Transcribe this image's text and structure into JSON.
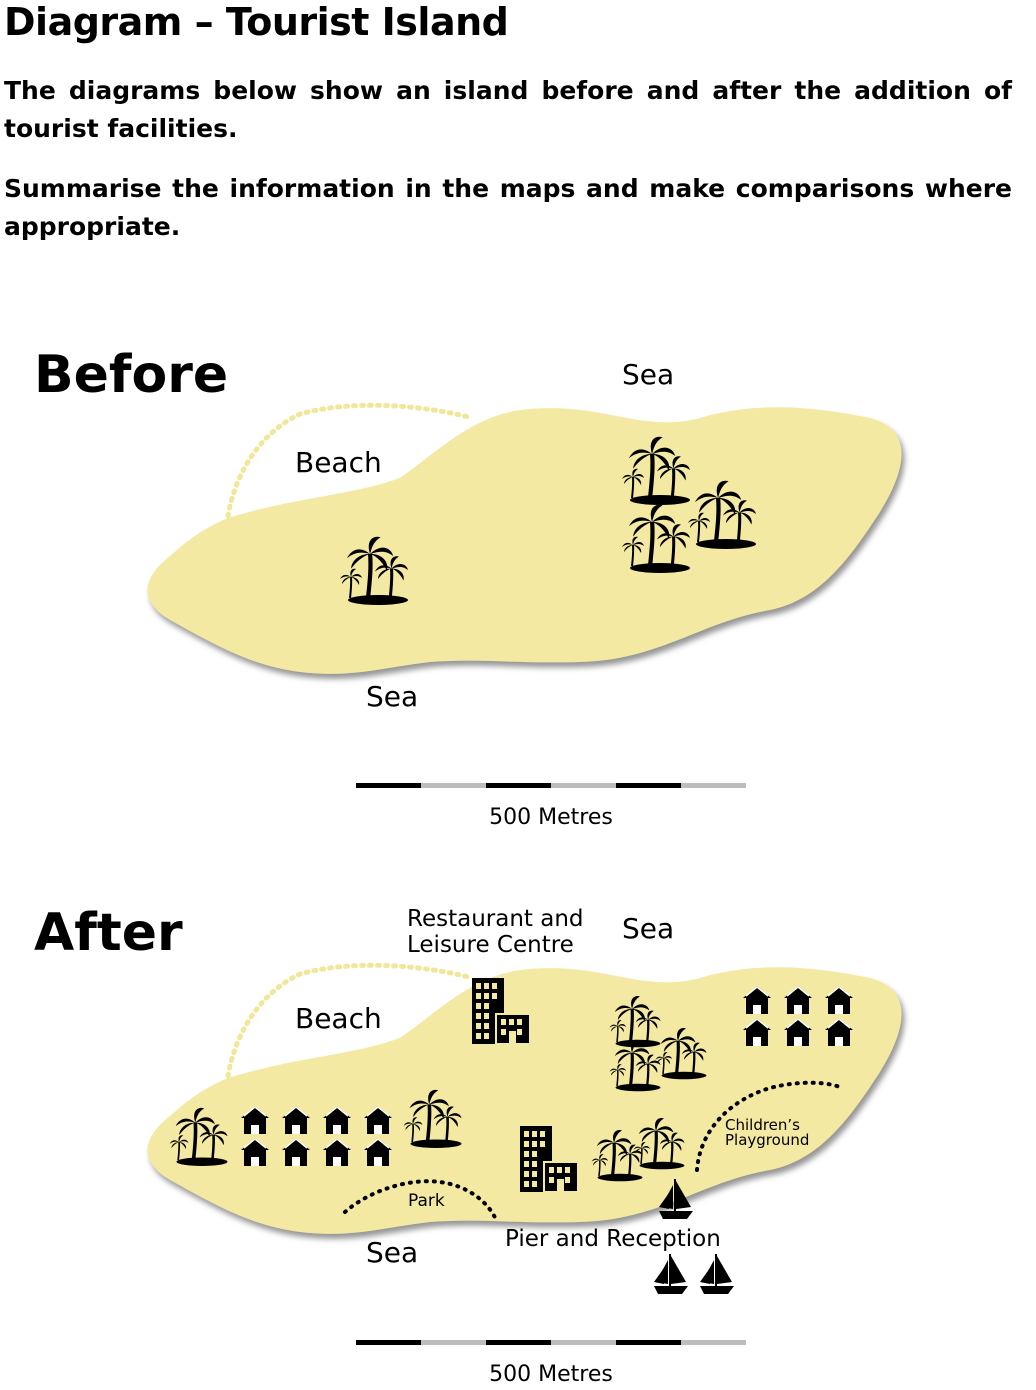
{
  "header": {
    "title": "Diagram – Tourist Island",
    "prompt": "The diagrams below show an island before and after the addition of tourist facilities.",
    "instruction": "Summarise the information in the maps and make comparisons where appropriate."
  },
  "maps": {
    "before": {
      "heading": "Before",
      "labels": {
        "sea_top": "Sea",
        "sea_bottom": "Sea",
        "beach": "Beach"
      },
      "scale_label": "500 Metres"
    },
    "after": {
      "heading": "After",
      "labels": {
        "sea_top": "Sea",
        "sea_bottom": "Sea",
        "beach": "Beach",
        "restaurant_line1": "Restaurant and",
        "restaurant_line2": "Leisure Centre",
        "park": "Park",
        "pier": "Pier and Reception",
        "playground_line1": "Children’s",
        "playground_line2": "Playground"
      },
      "scale_label": "500 Metres"
    }
  },
  "colors": {
    "island": "#f3e9a3",
    "shadow": "#9a9a9a",
    "dots": "#f0e79a",
    "icons": "#000000"
  },
  "icons": [
    "palm-trees-icon",
    "house-icon",
    "building-icon",
    "sailing-ship-icon"
  ]
}
